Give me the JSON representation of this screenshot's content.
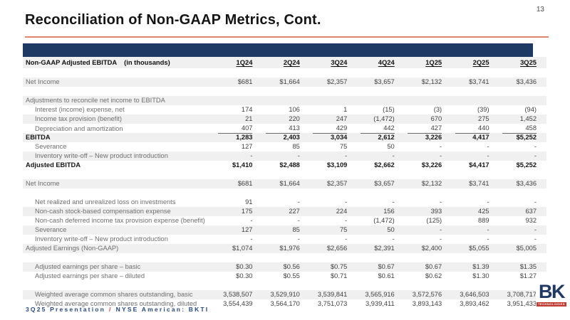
{
  "page": {
    "number": "13",
    "title": "Reconciliation of Non-GAAP Metrics, Cont."
  },
  "footer": {
    "left": "3Q25 Presentation",
    "separator": "/",
    "right": "NYSE American: BKTI"
  },
  "logo": {
    "text": "BK",
    "ribbon": "TECHNOLOGIES"
  },
  "colors": {
    "navy_band": "#1E3A64",
    "title_rule_coral": "#E0846B",
    "footer_navy": "#27497E",
    "footer_slash_red": "#D0453A",
    "row_stripe": "#F0F0F1"
  },
  "table": {
    "title": "Non-GAAP Adjusted EBITDA",
    "subtitle": "(in thousands)",
    "columns": [
      "1Q24",
      "2Q24",
      "3Q24",
      "4Q24",
      "1Q25",
      "2Q25",
      "3Q25"
    ],
    "rows": [
      {
        "spacer": true
      },
      {
        "label": "Net Income",
        "values": [
          "$681",
          "$1,664",
          "$2,357",
          "$3,657",
          "$2,132",
          "$3,741",
          "$3,436"
        ],
        "shade": true
      },
      {
        "spacer": true
      },
      {
        "label": "Adjustments to reconcile net income to EBITDA",
        "values": [
          "",
          "",
          "",
          "",
          "",
          "",
          ""
        ],
        "shade": true
      },
      {
        "label": "Interest (income) expense, net",
        "values": [
          "174",
          "106",
          "1",
          "(15)",
          "(3)",
          "(39)",
          "(94)"
        ],
        "indent": true
      },
      {
        "label": "Income tax provision (benefit)",
        "values": [
          "21",
          "220",
          "247",
          "(1,472)",
          "670",
          "275",
          "1,452"
        ],
        "indent": true,
        "shade": true
      },
      {
        "label": "Depreciation and amortization",
        "values": [
          "407",
          "413",
          "429",
          "442",
          "427",
          "440",
          "458"
        ],
        "indent": true,
        "underline": true
      },
      {
        "label": "EBITDA",
        "values": [
          "1,283",
          "2,403",
          "3,034",
          "2,612",
          "3,226",
          "4,417",
          "$5,252"
        ],
        "bold": true,
        "shade": true
      },
      {
        "label": "Severance",
        "values": [
          "127",
          "85",
          "75",
          "50",
          "-",
          "-",
          "-"
        ],
        "indent": true
      },
      {
        "label": "Inventory write-off – New product introduction",
        "values": [
          "-",
          "-",
          "-",
          "-",
          "-",
          "-",
          "-"
        ],
        "indent": true,
        "shade": true
      },
      {
        "label": "Adjusted EBITDA",
        "values": [
          "$1,410",
          "$2,488",
          "$3,109",
          "$2,662",
          "$3,226",
          "$4,417",
          "$5,252"
        ],
        "bold": true
      },
      {
        "spacer": true
      },
      {
        "label": "Net Income",
        "values": [
          "$681",
          "$1,664",
          "$2,357",
          "$3,657",
          "$2,132",
          "$3,741",
          "$3,436"
        ],
        "shade": true
      },
      {
        "spacer": true
      },
      {
        "label": "Net realized and unrealized loss on investments",
        "values": [
          "91",
          "-",
          "-",
          "-",
          "-",
          "-",
          "-"
        ],
        "indent": true
      },
      {
        "label": "Non-cash stock-based compensation expense",
        "values": [
          "175",
          "227",
          "224",
          "156",
          "393",
          "425",
          "637"
        ],
        "indent": true,
        "shade": true
      },
      {
        "label": "Non-cash deferred income tax provision expense (benefit)",
        "values": [
          "-",
          "-",
          "-",
          "(1,472)",
          "(125)",
          "889",
          "932"
        ],
        "indent": true
      },
      {
        "label": "Severance",
        "values": [
          "127",
          "85",
          "75",
          "50",
          "-",
          "-",
          "-"
        ],
        "indent": true,
        "shade": true
      },
      {
        "label": "Inventory write-off – New product introduction",
        "values": [
          "-",
          "-",
          "-",
          "-",
          "-",
          "-",
          "-"
        ],
        "indent": true
      },
      {
        "label": "Adjusted Earnings (Non-GAAP)",
        "values": [
          "$1,074",
          "$1,976",
          "$2,656",
          "$2,391",
          "$2,400",
          "$5,055",
          "$5,005"
        ],
        "shade": true
      },
      {
        "spacer": true
      },
      {
        "label": "Adjusted earnings per share – basic",
        "values": [
          "$0.30",
          "$0.56",
          "$0.75",
          "$0.67",
          "$0.67",
          "$1.39",
          "$1.35"
        ],
        "indent": true,
        "shade": true
      },
      {
        "label": "Adjusted earnings per share – diluted",
        "values": [
          "$0.30",
          "$0.55",
          "$0.71",
          "$0.61",
          "$0.62",
          "$1.30",
          "$1.27"
        ],
        "indent": true
      },
      {
        "spacer": true
      },
      {
        "label": "Weighted average common shares outstanding, basic",
        "values": [
          "3,538,507",
          "3,529,910",
          "3,539,841",
          "3,565,916",
          "3,572,576",
          "3,646,503",
          "3,708,717"
        ],
        "indent": true,
        "shade": true
      },
      {
        "label": "Weighted average common shares outstanding, diluted",
        "values": [
          "3,554,439",
          "3,564,170",
          "3,751,073",
          "3,939,411",
          "3,893,143",
          "3,893,462",
          "3,951,433"
        ],
        "indent": true
      }
    ]
  }
}
